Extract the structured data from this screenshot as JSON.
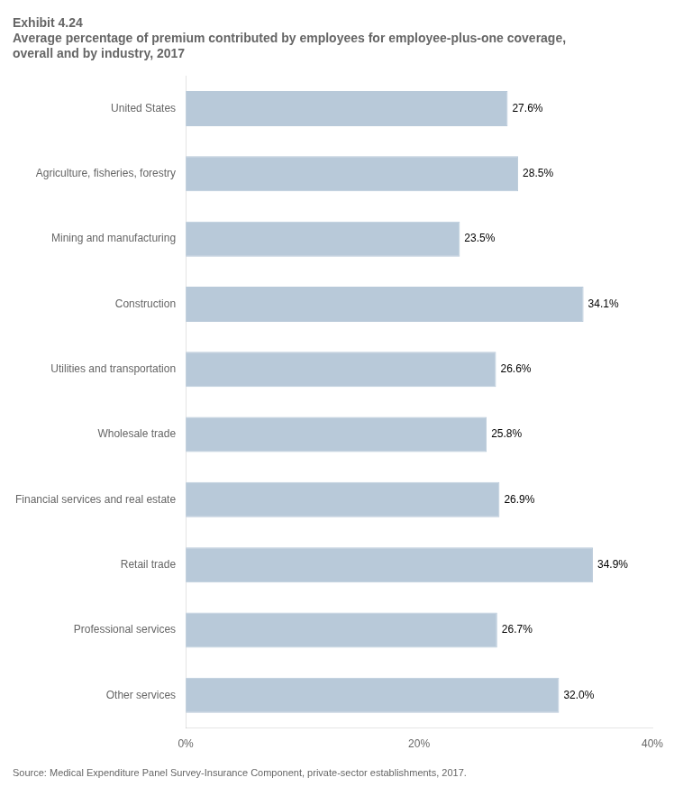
{
  "chart_data": {
    "type": "bar",
    "orientation": "horizontal",
    "title": "Exhibit 4.24",
    "subtitle": "Average percentage of premium contributed by employees for employee-plus-one coverage,\noverall and by industry, 2017",
    "source": "Source: Medical Expenditure Panel Survey-Insurance Component, private-sector establishments, 2017.",
    "categories": [
      "Other services",
      "Professional services",
      "Retail trade",
      "Financial services and real estate",
      "Wholesale trade",
      "Utilities and transportation",
      "Construction",
      "Mining and manufacturing",
      "Agriculture, fisheries, forestry",
      "United States"
    ],
    "values": [
      32.0,
      26.7,
      34.9,
      26.9,
      25.8,
      26.6,
      34.1,
      23.5,
      28.5,
      27.6
    ],
    "value_labels": [
      "32.0%",
      "26.7%",
      "34.9%",
      "26.9%",
      "25.8%",
      "26.6%",
      "34.1%",
      "23.5%",
      "28.5%",
      "27.6%"
    ],
    "data_labels": true,
    "color": "#b8c9d9",
    "xlim": [
      0,
      40
    ],
    "xticks": [
      {
        "value": 0,
        "label": "0%"
      },
      {
        "value": 20,
        "label": "20%"
      },
      {
        "value": 40,
        "label": "40%"
      }
    ],
    "grid": false
  }
}
